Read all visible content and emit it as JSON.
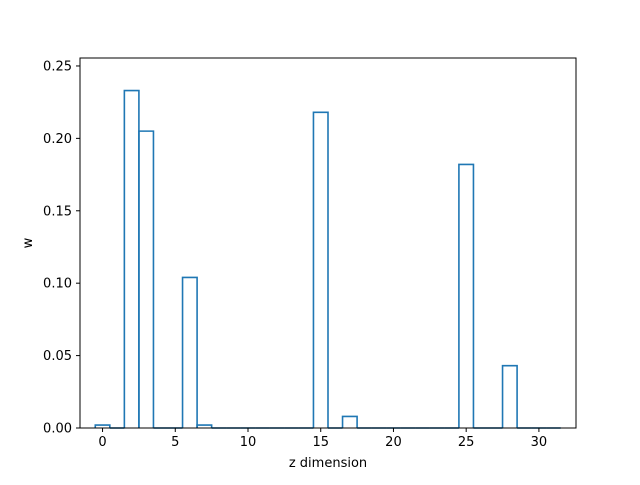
{
  "chart_data": {
    "type": "bar",
    "style": "step-outline",
    "x": [
      0,
      1,
      2,
      3,
      4,
      5,
      6,
      7,
      8,
      9,
      10,
      11,
      12,
      13,
      14,
      15,
      16,
      17,
      18,
      19,
      20,
      21,
      22,
      23,
      24,
      25,
      26,
      27,
      28,
      29,
      30,
      31
    ],
    "values": [
      0.002,
      0.0,
      0.233,
      0.205,
      0.0,
      0.0,
      0.104,
      0.002,
      0.0,
      0.0,
      0.0,
      0.0,
      0.0,
      0.0,
      0.0,
      0.218,
      0.0,
      0.008,
      0.0,
      0.0,
      0.0,
      0.0,
      0.0,
      0.0,
      0.0,
      0.182,
      0.0,
      0.0,
      0.043,
      0.0,
      0.0,
      0.0
    ],
    "xlabel": "z dimension",
    "ylabel": "w",
    "xlim": [
      -1.55,
      32.55
    ],
    "ylim": [
      0,
      0.2555
    ],
    "xticks": [
      "0",
      "5",
      "10",
      "15",
      "20",
      "25",
      "30"
    ],
    "xtick_values": [
      0,
      5,
      10,
      15,
      20,
      25,
      30
    ],
    "yticks": [
      "0.00",
      "0.05",
      "0.10",
      "0.15",
      "0.20",
      "0.25"
    ],
    "ytick_values": [
      0,
      0.05,
      0.1,
      0.15,
      0.2,
      0.25
    ],
    "grid": false,
    "line_color": "#1f77b4"
  }
}
